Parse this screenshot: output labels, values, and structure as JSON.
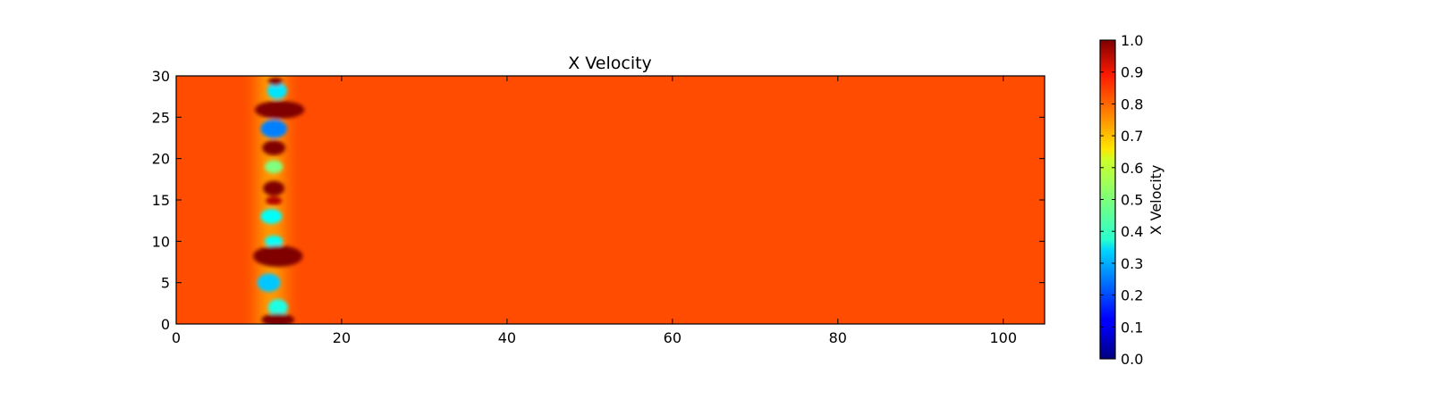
{
  "chart_data": {
    "type": "heatmap",
    "title": "X Velocity",
    "xlabel": "",
    "ylabel": "",
    "xlim": [
      0,
      105
    ],
    "ylim": [
      0,
      30
    ],
    "x_ticks": [
      0,
      20,
      40,
      60,
      80,
      100
    ],
    "y_ticks": [
      0,
      5,
      10,
      15,
      20,
      25,
      30
    ],
    "x_tick_labels": [
      "0",
      "20",
      "40",
      "60",
      "80",
      "100"
    ],
    "y_tick_labels": [
      "0",
      "5",
      "10",
      "15",
      "20",
      "25",
      "30"
    ],
    "colormap": "jet",
    "background_value": 0.8,
    "colorbar": {
      "label": "X Velocity",
      "range": [
        0.0,
        1.0
      ],
      "ticks": [
        0.0,
        0.1,
        0.2,
        0.3,
        0.4,
        0.5,
        0.6,
        0.7,
        0.8,
        0.9,
        1.0
      ],
      "tick_labels": [
        "0.0",
        "0.1",
        "0.2",
        "0.3",
        "0.4",
        "0.5",
        "0.6",
        "0.7",
        "0.8",
        "0.9",
        "1.0"
      ],
      "placement": "right"
    },
    "features": [
      {
        "kind": "wake-band",
        "x": 11.5,
        "width": 3.2,
        "value": 0.72
      },
      {
        "kind": "low",
        "x": 12.2,
        "y": 28.2,
        "rx": 1.2,
        "ry": 1.0,
        "value": 0.35
      },
      {
        "kind": "high",
        "x": 12.0,
        "y": 29.3,
        "rx": 0.9,
        "ry": 0.5,
        "value": 1.0
      },
      {
        "kind": "high",
        "x": 12.5,
        "y": 25.9,
        "rx": 3.0,
        "ry": 1.1,
        "value": 1.0
      },
      {
        "kind": "low",
        "x": 11.8,
        "y": 23.6,
        "rx": 1.6,
        "ry": 1.1,
        "value": 0.25
      },
      {
        "kind": "high",
        "x": 11.8,
        "y": 21.3,
        "rx": 1.4,
        "ry": 0.9,
        "value": 1.0
      },
      {
        "kind": "low",
        "x": 11.8,
        "y": 19.0,
        "rx": 1.1,
        "ry": 0.8,
        "value": 0.5
      },
      {
        "kind": "high",
        "x": 11.8,
        "y": 16.4,
        "rx": 1.3,
        "ry": 0.9,
        "value": 1.0
      },
      {
        "kind": "high",
        "x": 11.8,
        "y": 14.9,
        "rx": 1.0,
        "ry": 0.5,
        "value": 0.95
      },
      {
        "kind": "low",
        "x": 11.5,
        "y": 13.0,
        "rx": 1.3,
        "ry": 0.9,
        "value": 0.38
      },
      {
        "kind": "low",
        "x": 11.8,
        "y": 10.0,
        "rx": 1.1,
        "ry": 0.7,
        "value": 0.38
      },
      {
        "kind": "high",
        "x": 12.3,
        "y": 8.2,
        "rx": 3.0,
        "ry": 1.3,
        "value": 1.0
      },
      {
        "kind": "low",
        "x": 11.2,
        "y": 5.0,
        "rx": 1.4,
        "ry": 1.1,
        "value": 0.32
      },
      {
        "kind": "low",
        "x": 12.3,
        "y": 2.0,
        "rx": 1.2,
        "ry": 1.0,
        "value": 0.4
      },
      {
        "kind": "high",
        "x": 12.3,
        "y": 0.5,
        "rx": 2.0,
        "ry": 0.8,
        "value": 1.0
      }
    ]
  }
}
